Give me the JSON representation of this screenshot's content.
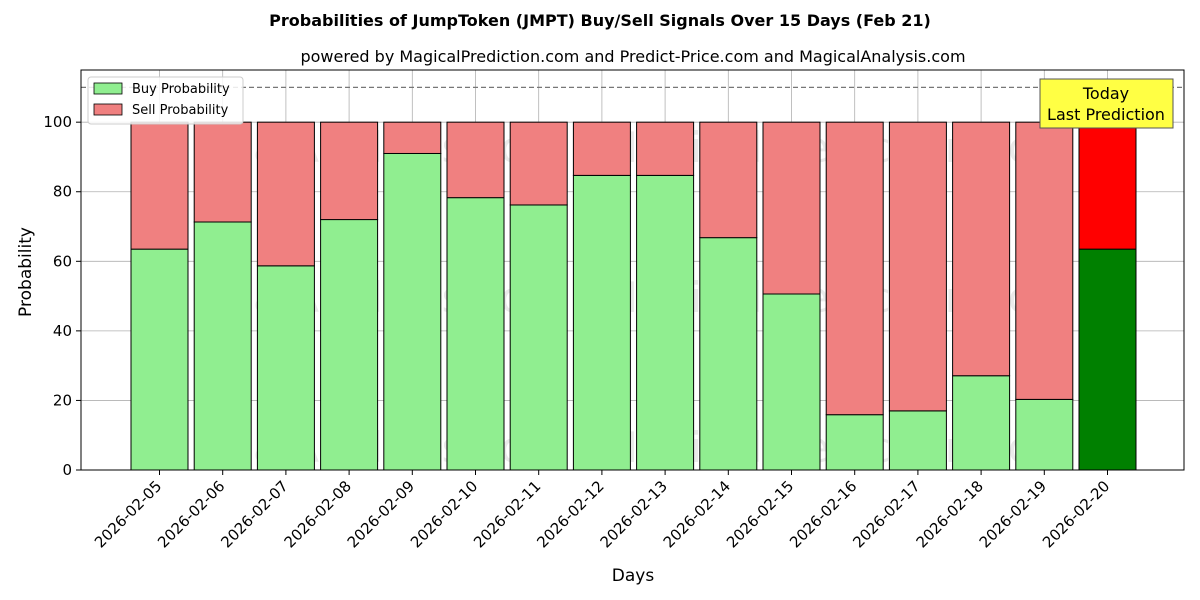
{
  "chart_data": {
    "type": "bar",
    "stacked": true,
    "title": "Probabilities of JumpToken (JMPT) Buy/Sell Signals Over 15 Days (Feb 21)",
    "subtitle": "powered by MagicalPrediction.com and Predict-Price.com and MagicalAnalysis.com",
    "xlabel": "Days",
    "ylabel": "Probability",
    "ylim": [
      0,
      115
    ],
    "yticks": [
      0,
      20,
      40,
      60,
      80,
      100
    ],
    "reference_line": 110,
    "grid": true,
    "legend_position": "top-left",
    "categories": [
      "2026-02-05",
      "2026-02-06",
      "2026-02-07",
      "2026-02-08",
      "2026-02-09",
      "2026-02-10",
      "2026-02-11",
      "2026-02-12",
      "2026-02-13",
      "2026-02-14",
      "2026-02-15",
      "2026-02-16",
      "2026-02-17",
      "2026-02-18",
      "2026-02-19",
      "2026-02-20"
    ],
    "series": [
      {
        "name": "Buy Probability",
        "color": "#90ee90",
        "highlight_color": "#008000",
        "values": [
          63.5,
          71.3,
          58.7,
          72.0,
          91.0,
          78.3,
          76.2,
          84.7,
          84.7,
          66.8,
          50.6,
          15.9,
          17.0,
          27.1,
          20.3,
          63.5
        ]
      },
      {
        "name": "Sell Probability",
        "color": "#f08080",
        "highlight_color": "#ff0000",
        "values": [
          36.5,
          28.7,
          41.3,
          28.0,
          9.0,
          21.7,
          23.8,
          15.3,
          15.3,
          33.2,
          49.4,
          84.1,
          83.0,
          72.9,
          79.7,
          36.5
        ]
      }
    ],
    "highlight_index": 15,
    "annotation": {
      "line1": "Today",
      "line2": "Last Prediction",
      "background": "#ffff44"
    },
    "watermarks": [
      "MagicalAnalysis.com",
      "MagicalPrediction.com"
    ]
  }
}
